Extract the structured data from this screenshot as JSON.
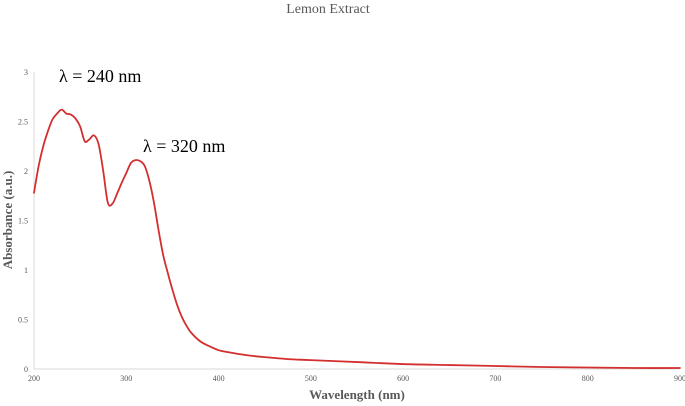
{
  "chart_data": {
    "type": "line",
    "title": "Lemon Extract",
    "xlabel": "Wavelength (nm)",
    "ylabel": "Absorbance (a.u.)",
    "xlim": [
      200,
      900
    ],
    "ylim": [
      0,
      3
    ],
    "x_ticks": [
      "200",
      "300",
      "400",
      "500",
      "600",
      "700",
      "800",
      "900"
    ],
    "y_ticks": [
      "0",
      "0.5",
      "1",
      "1.5",
      "2",
      "2.5",
      "3"
    ],
    "grid": false,
    "legend": "none",
    "annotations": [
      {
        "text": "λ = 240 nm",
        "x": 240,
        "y": 2.62
      },
      {
        "text": "λ = 320 nm",
        "x": 320,
        "y": 2.11
      }
    ],
    "series": [
      {
        "color": "#d32f2f",
        "x": [
          200,
          205,
          210,
          215,
          220,
          225,
          230,
          235,
          240,
          245,
          250,
          255,
          260,
          265,
          270,
          275,
          280,
          285,
          290,
          295,
          300,
          305,
          310,
          315,
          320,
          325,
          330,
          335,
          340,
          345,
          350,
          355,
          360,
          365,
          370,
          380,
          390,
          400,
          410,
          430,
          450,
          475,
          500,
          550,
          600,
          650,
          700,
          750,
          800,
          850,
          900
        ],
        "y": [
          1.78,
          2.05,
          2.25,
          2.4,
          2.52,
          2.58,
          2.62,
          2.58,
          2.57,
          2.53,
          2.45,
          2.3,
          2.32,
          2.36,
          2.27,
          2.0,
          1.68,
          1.67,
          1.77,
          1.88,
          1.98,
          2.08,
          2.11,
          2.1,
          2.05,
          1.9,
          1.68,
          1.4,
          1.15,
          0.97,
          0.8,
          0.65,
          0.53,
          0.44,
          0.37,
          0.28,
          0.23,
          0.19,
          0.17,
          0.14,
          0.12,
          0.1,
          0.09,
          0.07,
          0.05,
          0.04,
          0.03,
          0.02,
          0.015,
          0.01,
          0.01
        ]
      }
    ]
  }
}
